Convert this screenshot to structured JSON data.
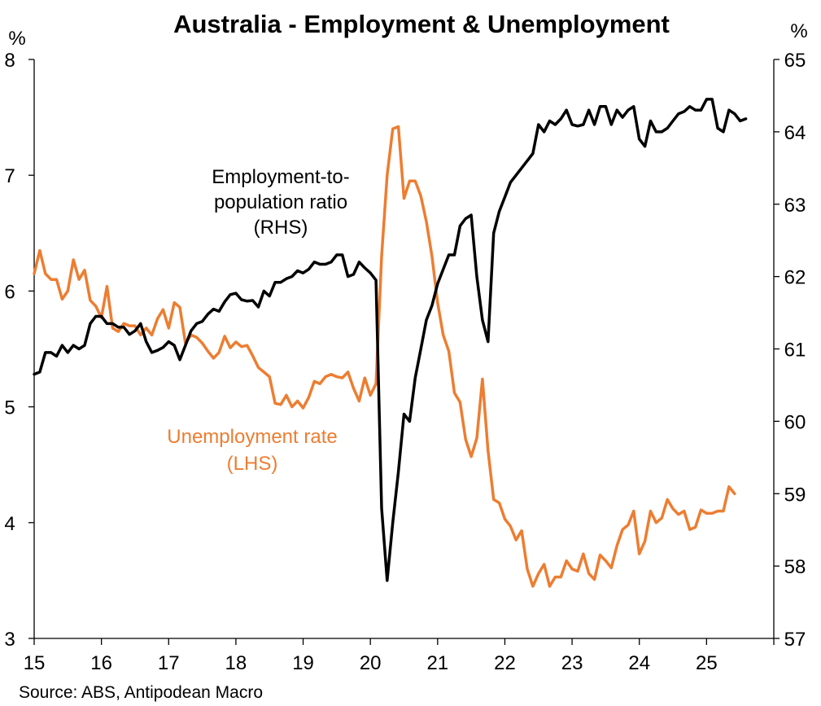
{
  "chart_data": {
    "type": "line",
    "title": "Australia - Employment & Unemployment",
    "source": "Source: ABS, Antipodean Macro",
    "x_axis": {
      "tick_labels": [
        "15",
        "16",
        "17",
        "18",
        "19",
        "20",
        "21",
        "22",
        "23",
        "24",
        "25"
      ],
      "range": [
        2015.0,
        2026.0
      ]
    },
    "y_left": {
      "unit": "%",
      "range": [
        3,
        8
      ],
      "ticks": [
        "3",
        "4",
        "5",
        "6",
        "7",
        "8"
      ]
    },
    "y_right": {
      "unit": "%",
      "range": [
        57,
        65
      ],
      "ticks": [
        "57",
        "58",
        "59",
        "60",
        "61",
        "62",
        "63",
        "64",
        "65"
      ]
    },
    "grid": false,
    "series": [
      {
        "name": "Unemployment rate (LHS)",
        "label_lines": [
          "Unemployment rate",
          "(LHS)"
        ],
        "axis": "left",
        "color": "#ED7D31",
        "start": 2015.0,
        "step": 0.0833333,
        "values": [
          6.15,
          6.35,
          6.15,
          6.1,
          6.1,
          5.93,
          6.0,
          6.27,
          6.1,
          6.18,
          5.92,
          5.87,
          5.77,
          6.04,
          5.68,
          5.65,
          5.72,
          5.7,
          5.7,
          5.62,
          5.68,
          5.62,
          5.76,
          5.84,
          5.68,
          5.9,
          5.86,
          5.55,
          5.62,
          5.6,
          5.55,
          5.48,
          5.42,
          5.47,
          5.61,
          5.51,
          5.56,
          5.52,
          5.53,
          5.44,
          5.34,
          5.3,
          5.26,
          5.03,
          5.02,
          5.1,
          5.0,
          5.05,
          4.99,
          5.08,
          5.22,
          5.2,
          5.26,
          5.28,
          5.26,
          5.25,
          5.3,
          5.16,
          5.05,
          5.25,
          5.1,
          5.2,
          6.3,
          7.0,
          7.4,
          7.42,
          6.8,
          6.95,
          6.95,
          6.82,
          6.6,
          6.3,
          5.9,
          5.62,
          5.48,
          5.12,
          5.04,
          4.72,
          4.57,
          4.73,
          5.24,
          4.62,
          4.2,
          4.17,
          4.03,
          3.97,
          3.85,
          3.93,
          3.6,
          3.45,
          3.56,
          3.64,
          3.45,
          3.53,
          3.53,
          3.67,
          3.6,
          3.58,
          3.73,
          3.56,
          3.51,
          3.72,
          3.67,
          3.61,
          3.8,
          3.94,
          3.98,
          4.1,
          3.73,
          3.84,
          4.1,
          4.0,
          4.04,
          4.2,
          4.12,
          4.07,
          4.1,
          3.94,
          3.96,
          4.11,
          4.08,
          4.08,
          4.1,
          4.1,
          4.31,
          4.25
        ]
      },
      {
        "name": "Employment-to-population ratio (RHS)",
        "label_lines": [
          "Employment-to-",
          "population ratio",
          "(RHS)"
        ],
        "axis": "right",
        "color": "#000000",
        "start": 2015.0,
        "step": 0.0833333,
        "values": [
          60.65,
          60.68,
          60.95,
          60.95,
          60.9,
          61.05,
          60.95,
          61.05,
          61.0,
          61.05,
          61.35,
          61.45,
          61.45,
          61.35,
          61.35,
          61.3,
          61.3,
          61.2,
          61.25,
          61.35,
          61.1,
          60.95,
          60.98,
          61.02,
          61.1,
          61.05,
          60.85,
          61.05,
          61.25,
          61.35,
          61.38,
          61.48,
          61.55,
          61.52,
          61.65,
          61.75,
          61.77,
          61.68,
          61.66,
          61.67,
          61.58,
          61.8,
          61.73,
          61.92,
          61.92,
          61.97,
          62.0,
          62.08,
          62.05,
          62.1,
          62.2,
          62.17,
          62.17,
          62.2,
          62.3,
          62.3,
          62.0,
          62.03,
          62.2,
          62.12,
          62.05,
          61.95,
          58.8,
          57.8,
          58.6,
          59.3,
          60.1,
          60.0,
          60.6,
          61.0,
          61.4,
          61.6,
          61.9,
          62.1,
          62.3,
          62.3,
          62.7,
          62.8,
          62.85,
          62.0,
          61.4,
          61.1,
          62.6,
          62.9,
          63.1,
          63.3,
          63.4,
          63.5,
          63.6,
          63.7,
          64.1,
          64.0,
          64.15,
          64.1,
          64.18,
          64.3,
          64.1,
          64.08,
          64.1,
          64.3,
          64.1,
          64.35,
          64.35,
          64.1,
          64.3,
          64.2,
          64.3,
          64.35,
          63.9,
          63.8,
          64.15,
          64.0,
          64.0,
          64.05,
          64.15,
          64.25,
          64.28,
          64.35,
          64.3,
          64.3,
          64.45,
          64.45,
          64.05,
          64.0,
          64.3,
          64.25,
          64.15,
          64.18
        ]
      }
    ]
  }
}
